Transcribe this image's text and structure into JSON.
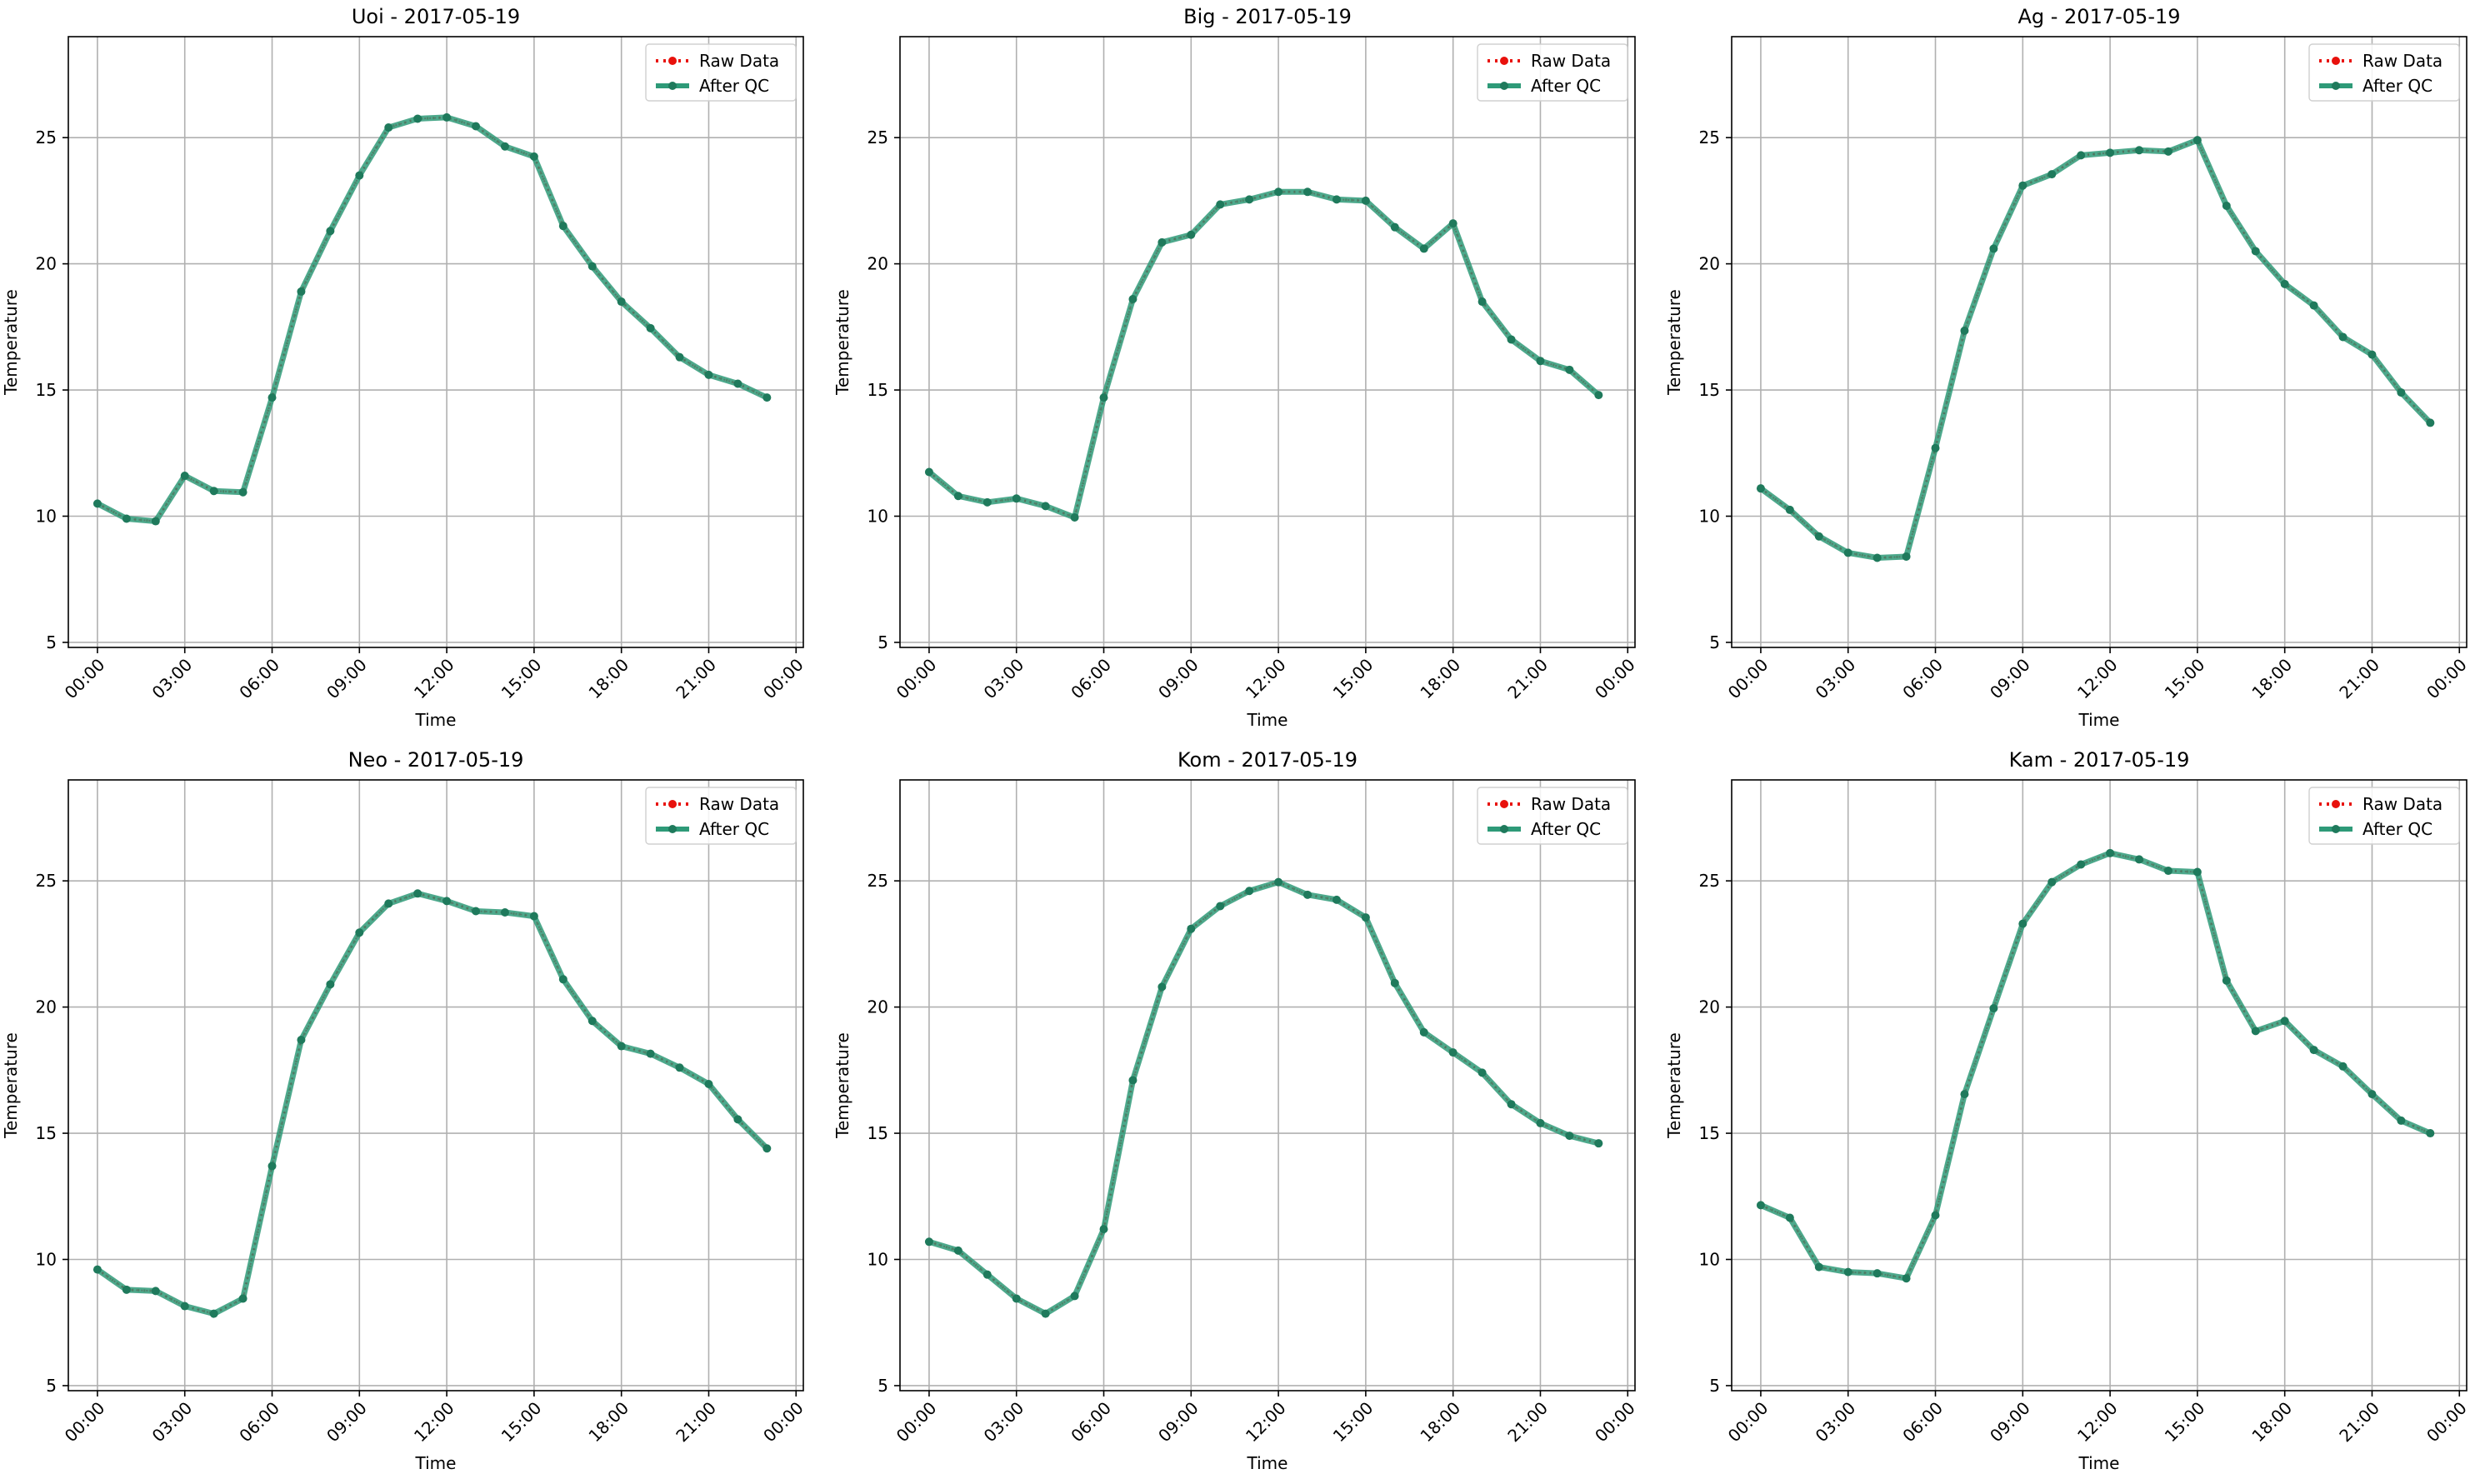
{
  "colors": {
    "raw": "#e8110c",
    "qc": "#2e9a78",
    "qc_marker": "#1f7a5c",
    "grid": "#b0b0b0",
    "axis": "#000000",
    "background": "#ffffff"
  },
  "legend_labels": {
    "raw": "Raw Data",
    "qc": "After QC"
  },
  "chart_data": [
    {
      "type": "line",
      "title": "Uoi - 2017-05-19",
      "xlabel": "Time",
      "ylabel": "Temperature",
      "xlim": [
        "2017-05-18 23:00",
        "2017-05-20 00:15"
      ],
      "ylim": [
        4.8,
        29
      ],
      "xticks": [
        "00:00",
        "03:00",
        "06:00",
        "09:00",
        "12:00",
        "15:00",
        "18:00",
        "21:00",
        "00:00"
      ],
      "yticks": [
        5,
        10,
        15,
        20,
        25
      ],
      "grid": true,
      "legend_position": "top-right",
      "x_hours": [
        0,
        1,
        2,
        3,
        4,
        5,
        6,
        7,
        8,
        9,
        10,
        11,
        12,
        13,
        14,
        15,
        16,
        17,
        18,
        19,
        20,
        21,
        22,
        23
      ],
      "series": [
        {
          "name": "Raw Data",
          "values": [
            10.5,
            9.9,
            9.8,
            11.6,
            11.0,
            10.95,
            14.7,
            18.9,
            21.3,
            23.5,
            25.4,
            25.75,
            25.8,
            25.45,
            24.65,
            24.25,
            21.5,
            19.9,
            18.5,
            17.45,
            16.3,
            15.6,
            15.25,
            14.7
          ]
        },
        {
          "name": "After QC",
          "values": [
            10.5,
            9.9,
            9.8,
            11.6,
            11.0,
            10.95,
            14.7,
            18.9,
            21.3,
            23.5,
            25.4,
            25.75,
            25.8,
            25.45,
            24.65,
            24.25,
            21.5,
            19.9,
            18.5,
            17.45,
            16.3,
            15.6,
            15.25,
            14.7
          ]
        }
      ]
    },
    {
      "type": "line",
      "title": "Big - 2017-05-19",
      "xlabel": "Time",
      "ylabel": "Temperature",
      "xlim": [
        "2017-05-18 23:00",
        "2017-05-20 00:15"
      ],
      "ylim": [
        4.8,
        29
      ],
      "xticks": [
        "00:00",
        "03:00",
        "06:00",
        "09:00",
        "12:00",
        "15:00",
        "18:00",
        "21:00",
        "00:00"
      ],
      "yticks": [
        5,
        10,
        15,
        20,
        25
      ],
      "grid": true,
      "legend_position": "top-right",
      "x_hours": [
        0,
        1,
        2,
        3,
        4,
        5,
        6,
        7,
        8,
        9,
        10,
        11,
        12,
        13,
        14,
        15,
        16,
        17,
        18,
        19,
        20,
        21,
        22,
        23
      ],
      "series": [
        {
          "name": "Raw Data",
          "values": [
            11.75,
            10.8,
            10.55,
            10.7,
            10.4,
            9.95,
            14.7,
            18.6,
            20.85,
            21.15,
            22.35,
            22.55,
            22.85,
            22.85,
            22.55,
            22.5,
            21.45,
            20.6,
            21.6,
            18.5,
            17.0,
            16.15,
            15.8,
            14.8
          ]
        },
        {
          "name": "After QC",
          "values": [
            11.75,
            10.8,
            10.55,
            10.7,
            10.4,
            9.95,
            14.7,
            18.6,
            20.85,
            21.15,
            22.35,
            22.55,
            22.85,
            22.85,
            22.55,
            22.5,
            21.45,
            20.6,
            21.6,
            18.5,
            17.0,
            16.15,
            15.8,
            14.8
          ]
        }
      ]
    },
    {
      "type": "line",
      "title": "Ag - 2017-05-19",
      "xlabel": "Time",
      "ylabel": "Temperature",
      "xlim": [
        "2017-05-18 23:00",
        "2017-05-20 00:15"
      ],
      "ylim": [
        4.8,
        29
      ],
      "xticks": [
        "00:00",
        "03:00",
        "06:00",
        "09:00",
        "12:00",
        "15:00",
        "18:00",
        "21:00",
        "00:00"
      ],
      "yticks": [
        5,
        10,
        15,
        20,
        25
      ],
      "grid": true,
      "legend_position": "top-right",
      "x_hours": [
        0,
        1,
        2,
        3,
        4,
        5,
        6,
        7,
        8,
        9,
        10,
        11,
        12,
        13,
        14,
        15,
        16,
        17,
        18,
        19,
        20,
        21,
        22,
        23
      ],
      "series": [
        {
          "name": "Raw Data",
          "values": [
            11.1,
            10.25,
            9.2,
            8.55,
            8.35,
            8.4,
            12.7,
            17.35,
            20.6,
            23.1,
            23.55,
            24.3,
            24.4,
            24.5,
            24.45,
            24.9,
            22.3,
            20.5,
            19.2,
            18.35,
            17.1,
            16.4,
            14.9,
            13.7
          ]
        },
        {
          "name": "After QC",
          "values": [
            11.1,
            10.25,
            9.2,
            8.55,
            8.35,
            8.4,
            12.7,
            17.35,
            20.6,
            23.1,
            23.55,
            24.3,
            24.4,
            24.5,
            24.45,
            24.9,
            22.3,
            20.5,
            19.2,
            18.35,
            17.1,
            16.4,
            14.9,
            13.7
          ]
        }
      ]
    },
    {
      "type": "line",
      "title": "Neo - 2017-05-19",
      "xlabel": "Time",
      "ylabel": "Temperature",
      "xlim": [
        "2017-05-18 23:00",
        "2017-05-20 00:15"
      ],
      "ylim": [
        4.8,
        29
      ],
      "xticks": [
        "00:00",
        "03:00",
        "06:00",
        "09:00",
        "12:00",
        "15:00",
        "18:00",
        "21:00",
        "00:00"
      ],
      "yticks": [
        5,
        10,
        15,
        20,
        25
      ],
      "grid": true,
      "legend_position": "top-right",
      "x_hours": [
        0,
        1,
        2,
        3,
        4,
        5,
        6,
        7,
        8,
        9,
        10,
        11,
        12,
        13,
        14,
        15,
        16,
        17,
        18,
        19,
        20,
        21,
        22,
        23
      ],
      "series": [
        {
          "name": "Raw Data",
          "values": [
            9.6,
            8.8,
            8.75,
            8.15,
            7.85,
            8.45,
            13.7,
            18.7,
            20.9,
            22.95,
            24.1,
            24.5,
            24.2,
            23.8,
            23.75,
            23.6,
            21.1,
            19.45,
            18.45,
            18.15,
            17.6,
            16.95,
            15.55,
            14.4
          ]
        },
        {
          "name": "After QC",
          "values": [
            9.6,
            8.8,
            8.75,
            8.15,
            7.85,
            8.45,
            13.7,
            18.7,
            20.9,
            22.95,
            24.1,
            24.5,
            24.2,
            23.8,
            23.75,
            23.6,
            21.1,
            19.45,
            18.45,
            18.15,
            17.6,
            16.95,
            15.55,
            14.4
          ]
        }
      ]
    },
    {
      "type": "line",
      "title": "Kom - 2017-05-19",
      "xlabel": "Time",
      "ylabel": "Temperature",
      "xlim": [
        "2017-05-18 23:00",
        "2017-05-20 00:15"
      ],
      "ylim": [
        4.8,
        29
      ],
      "xticks": [
        "00:00",
        "03:00",
        "06:00",
        "09:00",
        "12:00",
        "15:00",
        "18:00",
        "21:00",
        "00:00"
      ],
      "yticks": [
        5,
        10,
        15,
        20,
        25
      ],
      "grid": true,
      "legend_position": "top-right",
      "x_hours": [
        0,
        1,
        2,
        3,
        4,
        5,
        6,
        7,
        8,
        9,
        10,
        11,
        12,
        13,
        14,
        15,
        16,
        17,
        18,
        19,
        20,
        21,
        22,
        23
      ],
      "series": [
        {
          "name": "Raw Data",
          "values": [
            10.7,
            10.35,
            9.4,
            8.45,
            7.85,
            8.55,
            11.2,
            17.1,
            20.8,
            23.1,
            24.0,
            24.6,
            24.95,
            24.45,
            24.25,
            23.55,
            20.95,
            19.0,
            18.2,
            17.4,
            16.15,
            15.4,
            14.9,
            14.6
          ]
        },
        {
          "name": "After QC",
          "values": [
            10.7,
            10.35,
            9.4,
            8.45,
            7.85,
            8.55,
            11.2,
            17.1,
            20.8,
            23.1,
            24.0,
            24.6,
            24.95,
            24.45,
            24.25,
            23.55,
            20.95,
            19.0,
            18.2,
            17.4,
            16.15,
            15.4,
            14.9,
            14.6
          ]
        }
      ]
    },
    {
      "type": "line",
      "title": "Kam - 2017-05-19",
      "xlabel": "Time",
      "ylabel": "Temperature",
      "xlim": [
        "2017-05-18 23:00",
        "2017-05-20 00:15"
      ],
      "ylim": [
        4.8,
        29
      ],
      "xticks": [
        "00:00",
        "03:00",
        "06:00",
        "09:00",
        "12:00",
        "15:00",
        "18:00",
        "21:00",
        "00:00"
      ],
      "yticks": [
        5,
        10,
        15,
        20,
        25
      ],
      "grid": true,
      "legend_position": "top-right",
      "x_hours": [
        0,
        1,
        2,
        3,
        4,
        5,
        6,
        7,
        8,
        9,
        10,
        11,
        12,
        13,
        14,
        15,
        16,
        17,
        18,
        19,
        20,
        21,
        22,
        23
      ],
      "series": [
        {
          "name": "Raw Data",
          "values": [
            12.15,
            11.65,
            9.7,
            9.5,
            9.45,
            9.25,
            11.75,
            16.55,
            19.95,
            23.3,
            24.95,
            25.65,
            26.1,
            25.85,
            25.4,
            25.35,
            21.05,
            19.05,
            19.45,
            18.3,
            17.65,
            16.55,
            15.5,
            15.0
          ]
        },
        {
          "name": "After QC",
          "values": [
            12.15,
            11.65,
            9.7,
            9.5,
            9.45,
            9.25,
            11.75,
            16.55,
            19.95,
            23.3,
            24.95,
            25.65,
            26.1,
            25.85,
            25.4,
            25.35,
            21.05,
            19.05,
            19.45,
            18.3,
            17.65,
            16.55,
            15.5,
            15.0
          ]
        }
      ]
    }
  ]
}
